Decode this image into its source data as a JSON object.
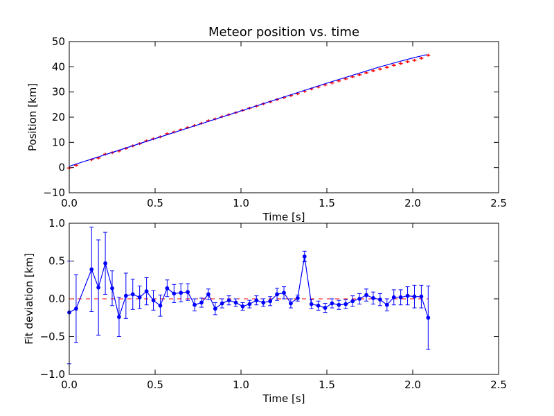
{
  "chart_data": [
    {
      "type": "line",
      "title": "Meteor position vs. time",
      "xlabel": "Time [s]",
      "ylabel": "Position [km]",
      "xlim": [
        0.0,
        2.5
      ],
      "ylim": [
        -10,
        50
      ],
      "xticks": [
        "0.0",
        "0.5",
        "1.0",
        "1.5",
        "2.0",
        "2.5"
      ],
      "yticks": [
        "−10",
        "0",
        "10",
        "20",
        "30",
        "40",
        "50"
      ],
      "grid": false,
      "colors": {
        "fit_line": "#0000ff",
        "measurements": "#ff0000"
      },
      "series": [
        {
          "style": "line",
          "x": [
            0.0,
            0.1,
            0.2,
            0.3,
            0.4,
            0.5,
            0.6,
            0.7,
            0.8,
            0.9,
            1.0,
            1.1,
            1.2,
            1.3,
            1.4,
            1.5,
            1.6,
            1.7,
            1.8,
            1.9,
            2.0,
            2.05,
            2.08
          ],
          "y": [
            0.5,
            2.7,
            4.9,
            7.1,
            9.3,
            11.5,
            13.7,
            15.9,
            18.1,
            20.3,
            22.5,
            24.7,
            26.9,
            29.1,
            31.3,
            33.5,
            35.6,
            37.7,
            39.8,
            41.7,
            43.5,
            44.3,
            44.8
          ]
        },
        {
          "style": "points",
          "x": [
            0.0,
            0.04,
            0.13,
            0.17,
            0.21,
            0.25,
            0.29,
            0.33,
            0.37,
            0.41,
            0.45,
            0.49,
            0.53,
            0.57,
            0.61,
            0.65,
            0.69,
            0.73,
            0.77,
            0.81,
            0.85,
            0.89,
            0.93,
            0.97,
            1.01,
            1.05,
            1.09,
            1.13,
            1.17,
            1.21,
            1.25,
            1.29,
            1.33,
            1.37,
            1.41,
            1.45,
            1.49,
            1.53,
            1.57,
            1.61,
            1.65,
            1.69,
            1.73,
            1.77,
            1.81,
            1.85,
            1.89,
            1.93,
            1.97,
            2.01,
            2.05,
            2.09
          ],
          "y": [
            -0.2,
            0.9,
            3.1,
            3.8,
            5.3,
            5.9,
            6.6,
            7.6,
            8.6,
            9.5,
            10.6,
            11.4,
            12.2,
            13.4,
            14.1,
            15.0,
            15.9,
            16.7,
            17.6,
            18.6,
            19.3,
            20.2,
            21.0,
            21.8,
            22.7,
            23.6,
            24.4,
            25.3,
            26.1,
            27.0,
            27.8,
            28.6,
            29.3,
            30.3,
            31.2,
            32.0,
            32.8,
            33.6,
            34.4,
            35.2,
            36.0,
            36.8,
            37.6,
            38.4,
            39.1,
            39.8,
            40.6,
            41.3,
            42.0,
            42.6,
            43.4,
            44.6
          ]
        }
      ]
    },
    {
      "type": "line",
      "xlabel": "Time [s]",
      "ylabel": "Fit deviation [km]",
      "xlim": [
        0.0,
        2.5
      ],
      "ylim": [
        -1.0,
        1.0
      ],
      "xticks": [
        "0.0",
        "0.5",
        "1.0",
        "1.5",
        "2.0",
        "2.5"
      ],
      "yticks": [
        "−1.0",
        "−0.5",
        "0.0",
        "0.5",
        "1.0"
      ],
      "grid": false,
      "reference_line": {
        "y": 0.0,
        "style": "dashed"
      },
      "colors": {
        "series": "#0000ff",
        "reference_line": "#ff0000"
      },
      "series": [
        {
          "style": "line-errorbars",
          "x": [
            0.0,
            0.04,
            0.13,
            0.17,
            0.21,
            0.25,
            0.29,
            0.33,
            0.37,
            0.41,
            0.45,
            0.49,
            0.53,
            0.57,
            0.61,
            0.65,
            0.69,
            0.73,
            0.77,
            0.81,
            0.85,
            0.89,
            0.93,
            0.97,
            1.01,
            1.05,
            1.09,
            1.13,
            1.17,
            1.21,
            1.25,
            1.29,
            1.33,
            1.37,
            1.41,
            1.45,
            1.49,
            1.53,
            1.57,
            1.61,
            1.65,
            1.69,
            1.73,
            1.77,
            1.81,
            1.85,
            1.89,
            1.93,
            1.97,
            2.01,
            2.05,
            2.09
          ],
          "y": [
            -0.18,
            -0.13,
            0.39,
            0.15,
            0.47,
            0.14,
            -0.24,
            0.04,
            0.06,
            0.02,
            0.1,
            -0.02,
            -0.09,
            0.14,
            0.07,
            0.08,
            0.09,
            -0.08,
            -0.05,
            0.06,
            -0.13,
            -0.06,
            -0.02,
            -0.05,
            -0.1,
            -0.07,
            -0.02,
            -0.05,
            -0.03,
            0.06,
            0.08,
            -0.06,
            0.01,
            0.56,
            -0.07,
            -0.09,
            -0.12,
            -0.06,
            -0.08,
            -0.07,
            -0.03,
            0.0,
            0.05,
            0.01,
            -0.01,
            -0.08,
            0.02,
            0.02,
            0.04,
            0.03,
            0.03,
            -0.25
          ],
          "error": [
            0.68,
            0.45,
            0.56,
            0.63,
            0.41,
            0.23,
            0.26,
            0.3,
            0.2,
            0.15,
            0.18,
            0.13,
            0.14,
            0.11,
            0.12,
            0.12,
            0.11,
            0.08,
            0.06,
            0.07,
            0.08,
            0.06,
            0.06,
            0.05,
            0.05,
            0.05,
            0.06,
            0.05,
            0.06,
            0.08,
            0.08,
            0.06,
            0.04,
            0.07,
            0.06,
            0.06,
            0.06,
            0.06,
            0.06,
            0.06,
            0.07,
            0.07,
            0.08,
            0.08,
            0.08,
            0.08,
            0.1,
            0.1,
            0.12,
            0.15,
            0.15,
            0.42
          ]
        }
      ]
    }
  ]
}
